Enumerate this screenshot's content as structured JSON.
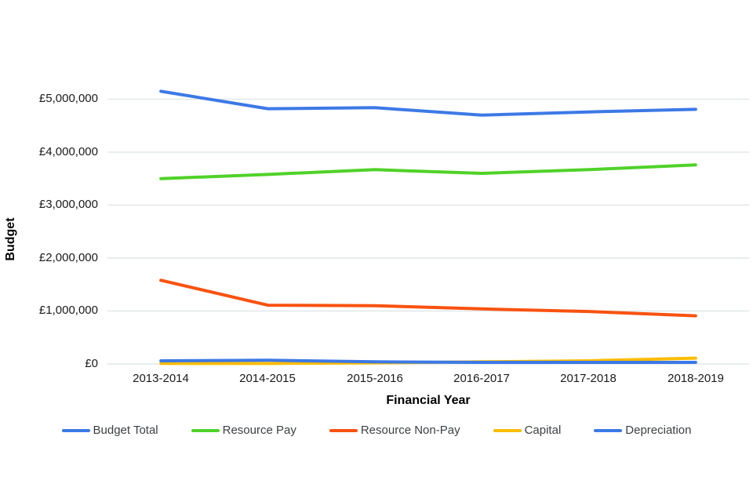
{
  "chart_data": {
    "type": "line",
    "title": "",
    "xlabel": "Financial Year",
    "ylabel": "Budget",
    "categories": [
      "2013-2014",
      "2014-2015",
      "2015-2016",
      "2016-2017",
      "2017-2018",
      "2018-2019"
    ],
    "y_tick_labels": [
      "£0",
      "£1,000,000",
      "£2,000,000",
      "£3,000,000",
      "£4,000,000",
      "£5,000,000"
    ],
    "y_tick_values": [
      0,
      1000000,
      2000000,
      3000000,
      4000000,
      5000000
    ],
    "ylim": [
      0,
      5000000
    ],
    "grid": true,
    "legend_position": "bottom",
    "gridline_color": "#e1e7e7",
    "series": [
      {
        "name": "Budget Total",
        "color": "#3c79e6",
        "values": [
          5150000,
          4820000,
          4840000,
          4700000,
          4760000,
          4810000
        ]
      },
      {
        "name": "Resource Pay",
        "color": "#50d228",
        "values": [
          3500000,
          3580000,
          3670000,
          3600000,
          3670000,
          3760000
        ]
      },
      {
        "name": "Resource Non-Pay",
        "color": "#f95210",
        "values": [
          1580000,
          1110000,
          1100000,
          1040000,
          990000,
          910000
        ]
      },
      {
        "name": "Capital",
        "color": "#fbbc04",
        "values": [
          10000,
          10000,
          20000,
          40000,
          60000,
          110000
        ]
      },
      {
        "name": "Depreciation",
        "color": "#3c79e6",
        "values": [
          60000,
          70000,
          40000,
          30000,
          30000,
          30000
        ]
      }
    ]
  }
}
